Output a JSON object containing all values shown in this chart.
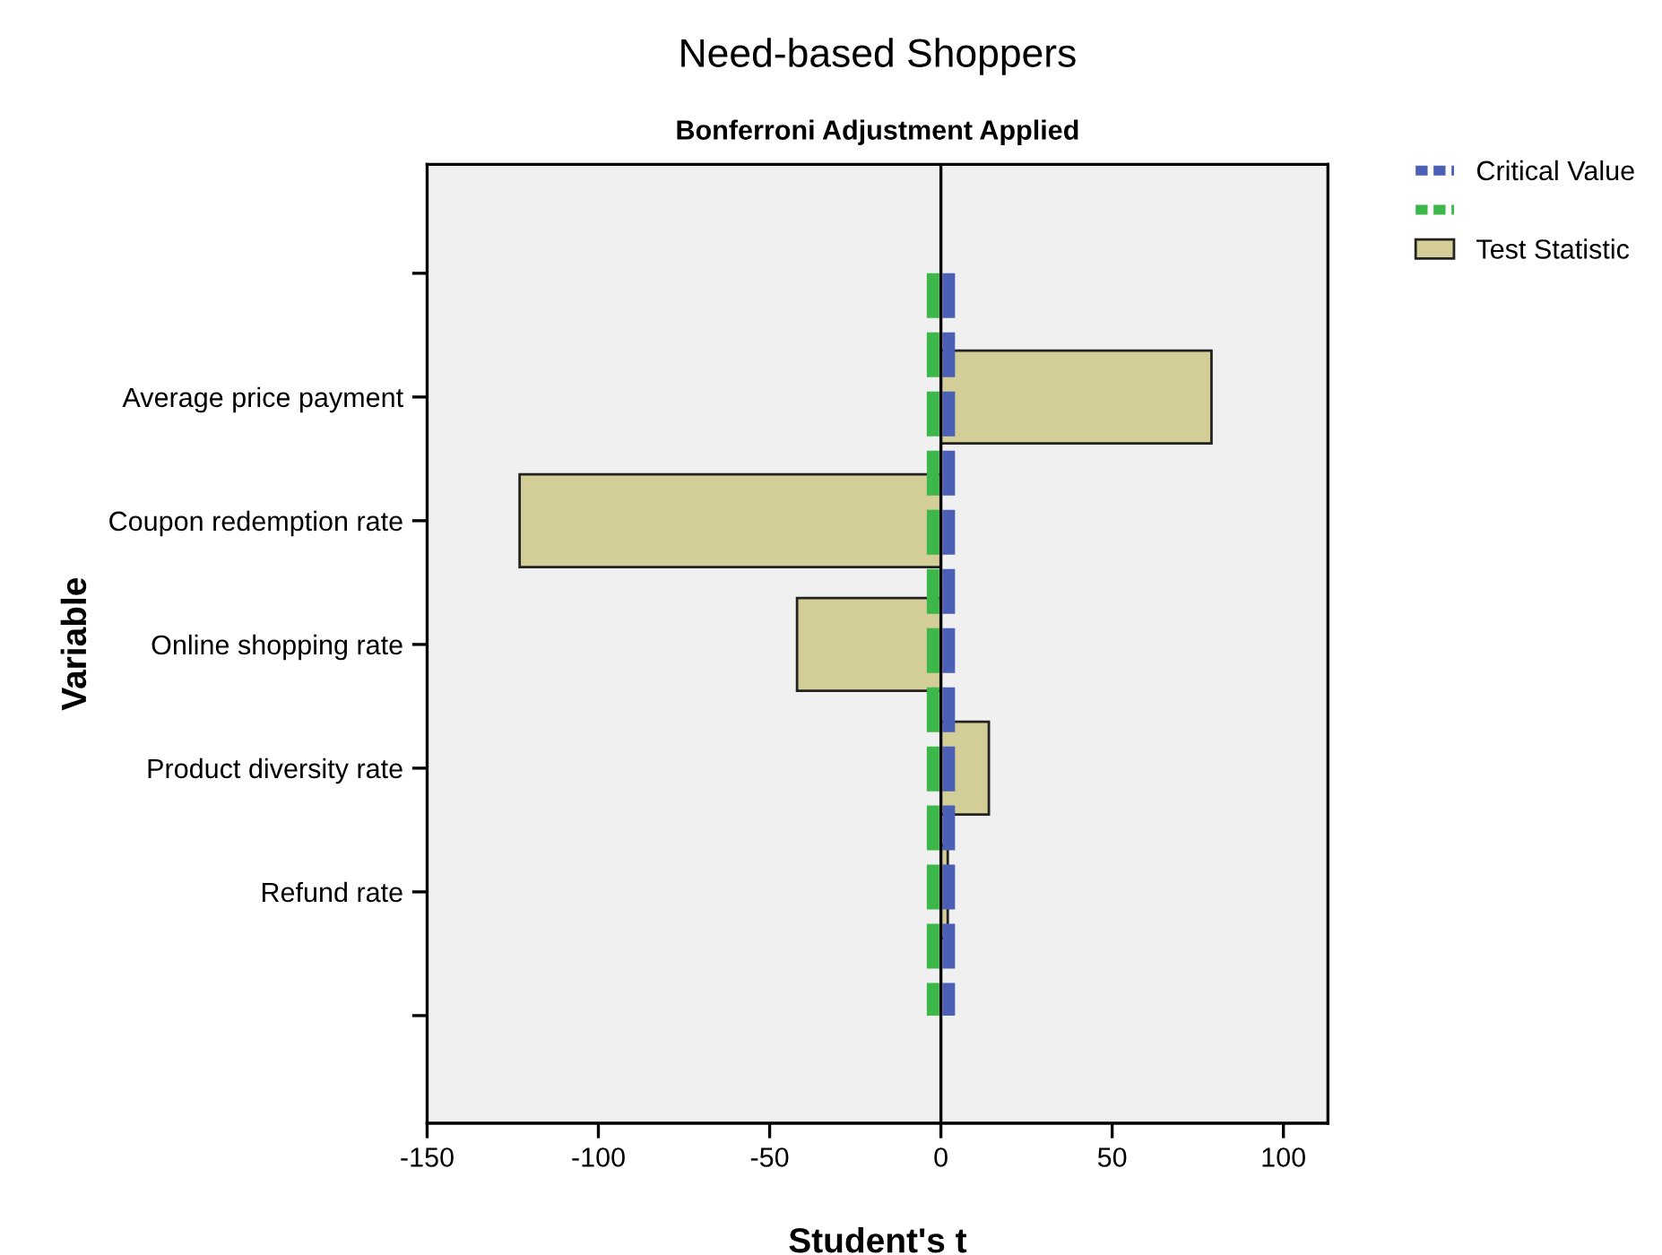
{
  "chart_data": {
    "type": "bar",
    "orientation": "horizontal",
    "title": "Need-based Shoppers",
    "subtitle": "Bonferroni Adjustment Applied",
    "xlabel": "Student's t",
    "ylabel": "Variable",
    "categories": [
      null,
      "Average price payment",
      "Coupon redemption rate",
      "Online shopping rate",
      "Product diversity rate",
      "Refund rate",
      null
    ],
    "series": [
      {
        "name": "Test Statistic",
        "color": "#d3cd97",
        "values": [
          null,
          79,
          -123,
          -42,
          14,
          2,
          null
        ]
      }
    ],
    "xlim": [
      -150,
      113
    ],
    "xticks": [
      -150,
      -100,
      -50,
      0,
      50,
      100
    ],
    "ref_lines": [
      {
        "axis": "x",
        "value": 2.3,
        "label": "Critical Value",
        "color": "#4a5fb5",
        "line_style": "dashed"
      },
      {
        "axis": "x",
        "value": -2.3,
        "label": null,
        "color": "#3cb84a",
        "line_style": "dashed"
      },
      {
        "axis": "x",
        "value": 0,
        "color": "#000000",
        "line_style": "solid"
      }
    ],
    "legend": "top right"
  }
}
